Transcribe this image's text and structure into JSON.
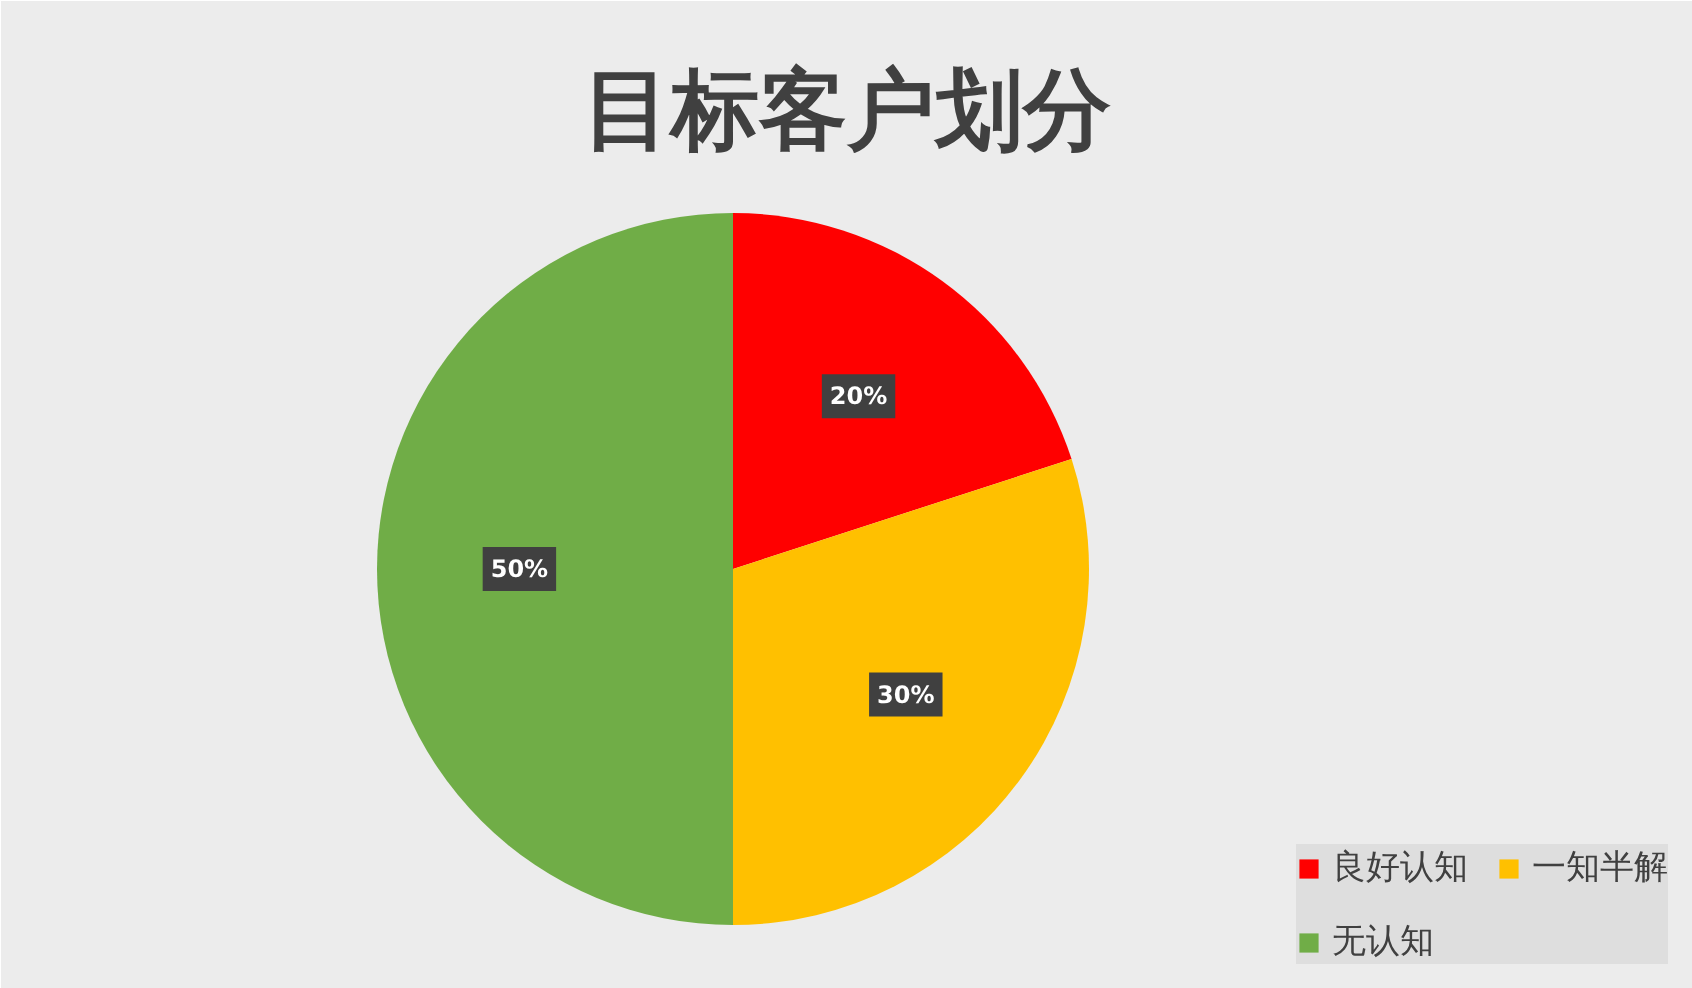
{
  "chart_data": {
    "type": "pie",
    "title": "目标客户划分",
    "categories": [
      "良好认知",
      "一知半解",
      "无认知"
    ],
    "values": [
      20,
      30,
      50
    ],
    "value_labels": [
      "20%",
      "30%",
      "50%"
    ],
    "colors": [
      "#ff0000",
      "#ffc000",
      "#70ad47"
    ],
    "legend": "bottom right"
  }
}
